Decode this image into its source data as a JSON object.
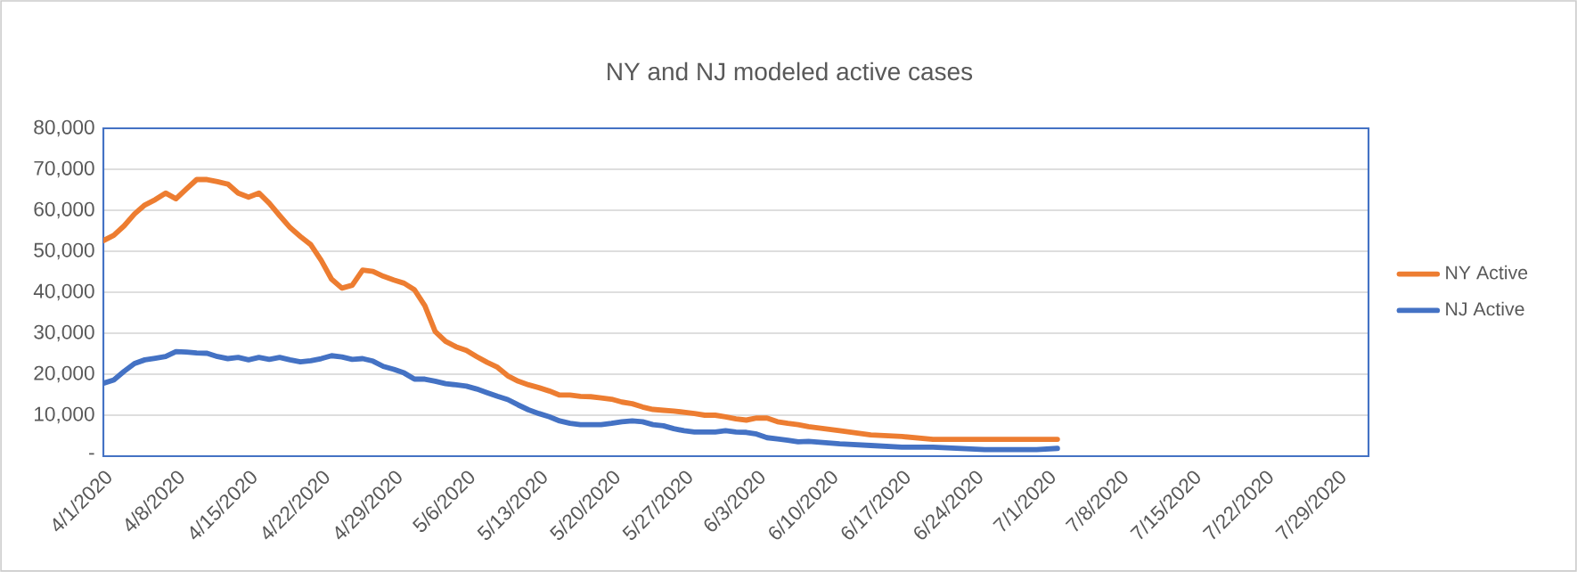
{
  "chart_data": {
    "type": "line",
    "title": "NY and NJ modeled active cases",
    "x": [
      "2020-04-01",
      "2020-04-02",
      "2020-04-03",
      "2020-04-04",
      "2020-04-05",
      "2020-04-06",
      "2020-04-07",
      "2020-04-08",
      "2020-04-09",
      "2020-04-10",
      "2020-04-11",
      "2020-04-12",
      "2020-04-13",
      "2020-04-14",
      "2020-04-15",
      "2020-04-16",
      "2020-04-17",
      "2020-04-18",
      "2020-04-19",
      "2020-04-20",
      "2020-04-21",
      "2020-04-22",
      "2020-04-23",
      "2020-04-24",
      "2020-04-25",
      "2020-04-26",
      "2020-04-27",
      "2020-04-28",
      "2020-04-29",
      "2020-04-30",
      "2020-05-01",
      "2020-05-02",
      "2020-05-03",
      "2020-05-04",
      "2020-05-05",
      "2020-05-06",
      "2020-05-07",
      "2020-05-08",
      "2020-05-09",
      "2020-05-10",
      "2020-05-11",
      "2020-05-12",
      "2020-05-13",
      "2020-05-14",
      "2020-05-15",
      "2020-05-16",
      "2020-05-17",
      "2020-05-18",
      "2020-05-19",
      "2020-05-20",
      "2020-05-21",
      "2020-05-22",
      "2020-05-23",
      "2020-05-24",
      "2020-05-25",
      "2020-05-26",
      "2020-05-27",
      "2020-05-28",
      "2020-05-29",
      "2020-05-30",
      "2020-05-31",
      "2020-06-01",
      "2020-06-02",
      "2020-06-03",
      "2020-06-04",
      "2020-06-05",
      "2020-06-06",
      "2020-06-07",
      "2020-06-08",
      "2020-06-11",
      "2020-06-14",
      "2020-06-17",
      "2020-06-20",
      "2020-06-25",
      "2020-06-30",
      "2020-07-02"
    ],
    "series": [
      {
        "name": "NY Active",
        "color": "#ed7d31",
        "values": [
          52600,
          53900,
          56200,
          59100,
          61300,
          62600,
          64200,
          62800,
          65200,
          67500,
          67500,
          67000,
          66400,
          64200,
          63200,
          64200,
          61700,
          58700,
          55800,
          53600,
          51600,
          47800,
          43200,
          41000,
          41700,
          45400,
          45100,
          43900,
          43000,
          42200,
          40600,
          36700,
          30400,
          28000,
          26700,
          25800,
          24300,
          22900,
          21700,
          19600,
          18300,
          17400,
          16700,
          15900,
          14900,
          14900,
          14600,
          14500,
          14200,
          13900,
          13200,
          12800,
          12000,
          11400,
          11200,
          11000,
          10700,
          10400,
          10000,
          10000,
          9600,
          9100,
          8800,
          9300,
          9300,
          8400,
          8000,
          7700,
          7200,
          6200,
          5200,
          4800,
          4100,
          4100,
          4100,
          4100
        ]
      },
      {
        "name": "NJ Active",
        "color": "#4472c4",
        "values": [
          17800,
          18600,
          20700,
          22600,
          23500,
          23900,
          24300,
          25500,
          25400,
          25200,
          25100,
          24300,
          23800,
          24100,
          23500,
          24100,
          23600,
          24100,
          23500,
          23000,
          23300,
          23800,
          24500,
          24200,
          23600,
          23800,
          23200,
          21900,
          21200,
          20300,
          18800,
          18800,
          18300,
          17700,
          17400,
          17100,
          16400,
          15500,
          14600,
          13800,
          12500,
          11300,
          10400,
          9600,
          8600,
          8000,
          7700,
          7700,
          7700,
          8000,
          8400,
          8600,
          8400,
          7700,
          7400,
          6700,
          6200,
          5900,
          5900,
          5900,
          6200,
          5900,
          5800,
          5400,
          4500,
          4200,
          3900,
          3500,
          3600,
          3000,
          2600,
          2200,
          2200,
          1600,
          1600,
          1900
        ]
      }
    ],
    "xlim": [
      "2020-04-01",
      "2020-08-01"
    ],
    "xticks": [
      {
        "value": "2020-04-01",
        "label": "4/1/2020"
      },
      {
        "value": "2020-04-08",
        "label": "4/8/2020"
      },
      {
        "value": "2020-04-15",
        "label": "4/15/2020"
      },
      {
        "value": "2020-04-22",
        "label": "4/22/2020"
      },
      {
        "value": "2020-04-29",
        "label": "4/29/2020"
      },
      {
        "value": "2020-05-06",
        "label": "5/6/2020"
      },
      {
        "value": "2020-05-13",
        "label": "5/13/2020"
      },
      {
        "value": "2020-05-20",
        "label": "5/20/2020"
      },
      {
        "value": "2020-05-27",
        "label": "5/27/2020"
      },
      {
        "value": "2020-06-03",
        "label": "6/3/2020"
      },
      {
        "value": "2020-06-10",
        "label": "6/10/2020"
      },
      {
        "value": "2020-06-17",
        "label": "6/17/2020"
      },
      {
        "value": "2020-06-24",
        "label": "6/24/2020"
      },
      {
        "value": "2020-07-01",
        "label": "7/1/2020"
      },
      {
        "value": "2020-07-08",
        "label": "7/8/2020"
      },
      {
        "value": "2020-07-15",
        "label": "7/15/2020"
      },
      {
        "value": "2020-07-22",
        "label": "7/22/2020"
      },
      {
        "value": "2020-07-29",
        "label": "7/29/2020"
      }
    ],
    "ylim": [
      0,
      80000
    ],
    "yticks": [
      {
        "value": 0,
        "label": "-"
      },
      {
        "value": 10000,
        "label": "10,000"
      },
      {
        "value": 20000,
        "label": "20,000"
      },
      {
        "value": 30000,
        "label": "30,000"
      },
      {
        "value": 40000,
        "label": "40,000"
      },
      {
        "value": 50000,
        "label": "50,000"
      },
      {
        "value": 60000,
        "label": "60,000"
      },
      {
        "value": 70000,
        "label": "70,000"
      },
      {
        "value": 80000,
        "label": "80,000"
      }
    ],
    "grid": "y",
    "legend": "right",
    "marker": "none",
    "line_style": "solid"
  }
}
